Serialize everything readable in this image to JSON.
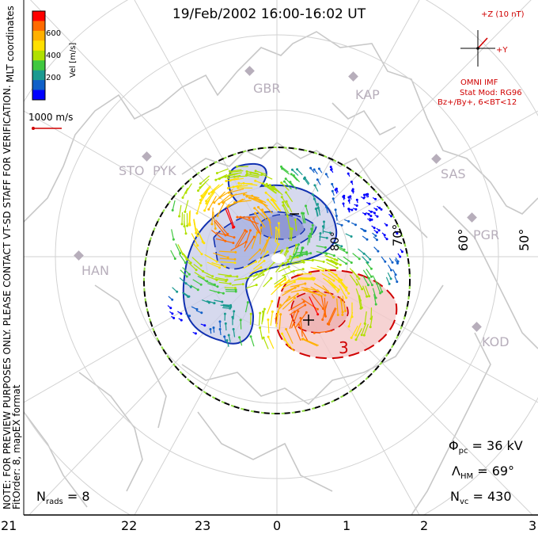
{
  "title": "19/Feb/2002 16:00-16:02 UT",
  "legend": {
    "axis_label": "Vel [m/s]",
    "ticks": [
      "600",
      "400",
      "200"
    ],
    "colors": [
      "#ff0000",
      "#ff6a00",
      "#ffb000",
      "#ffe000",
      "#b0e000",
      "#40c840",
      "#1a9a90",
      "#1060c8",
      "#0000ff"
    ]
  },
  "coordinates_label": "MLT coordinates",
  "scale_label": "1000 m/s",
  "note_text": "NOTE: FOR PREVIEW PURPOSES ONLY. PLEASE CONTACT VT-SD STAFF FOR VERIFICATION.",
  "fit_text": "FitOrder: 8, mapEX format",
  "imf": {
    "z_label": "+Z (10 nT)",
    "y_label": "+Y",
    "source": "OMNI IMF",
    "model": "Stat Mod: RG96",
    "condition": "Bz+/By+, 6<BT<12"
  },
  "stations": [
    "GBR",
    "KAP",
    "STO",
    "PYK",
    "SAS",
    "PGR",
    "HAN",
    "KOD"
  ],
  "latitude_labels": [
    "80°",
    "70°",
    "60°",
    "50°"
  ],
  "contour_labels": [
    "-",
    "3"
  ],
  "stats": {
    "phi_label": "Φ",
    "phi_sub": "pc",
    "phi_value": "= 36 kV",
    "lambda_label": "Λ",
    "lambda_sub": "HM",
    "lambda_value": "= 69°",
    "nvc_label": "N",
    "nvc_sub": "vc",
    "nvc_value": "= 430",
    "nrads_label": "N",
    "nrads_sub": "rads",
    "nrads_value": "= 8"
  },
  "mlt_labels": [
    "21",
    "22",
    "23",
    "0",
    "1",
    "2",
    "3"
  ]
}
